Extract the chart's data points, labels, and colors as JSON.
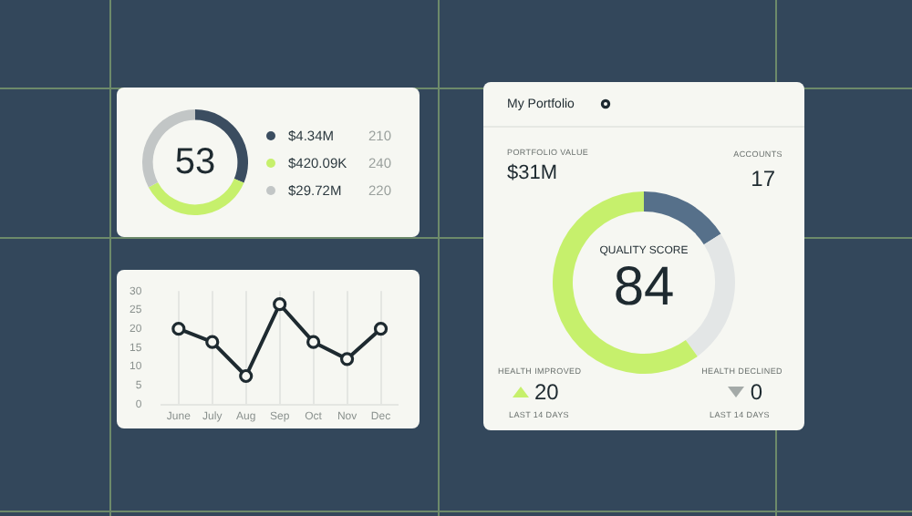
{
  "chart_data": [
    {
      "type": "donut",
      "categories": [
        "$4.34M",
        "$420.09K",
        "$29.72M"
      ],
      "values": [
        210,
        240,
        220
      ],
      "colors": [
        "#3b4d60",
        "#c6f06c",
        "#c2c6c6"
      ],
      "data_labels": true,
      "legend": "right",
      "annotations": [
        "53"
      ]
    },
    {
      "type": "line",
      "categories": [
        "June",
        "July",
        "Aug",
        "Sep",
        "Oct",
        "Nov",
        "Dec"
      ],
      "values": [
        20,
        16.5,
        7.5,
        26.5,
        16.5,
        12,
        20
      ],
      "color": "#1e2a30",
      "ylim": [
        0,
        30
      ],
      "yticks": [
        0,
        5,
        10,
        15,
        20,
        25,
        30
      ],
      "grid": "x",
      "marker": "circle"
    },
    {
      "type": "donut",
      "title": "My Portfolio",
      "categories": [
        null,
        null,
        null
      ],
      "values": [
        16,
        24,
        60
      ],
      "colors": [
        "#56708a",
        "#e3e6e6",
        "#c6f06c"
      ],
      "annotations": [
        "PORTFOLIO VALUE",
        "$31M",
        "ACCOUNTS",
        "17",
        "QUALITY SCORE",
        "84",
        "HEALTH IMPROVED",
        "20",
        "LAST 14 DAYS",
        "HEALTH DECLINED",
        "0",
        "LAST 14 DAYS"
      ]
    }
  ]
}
